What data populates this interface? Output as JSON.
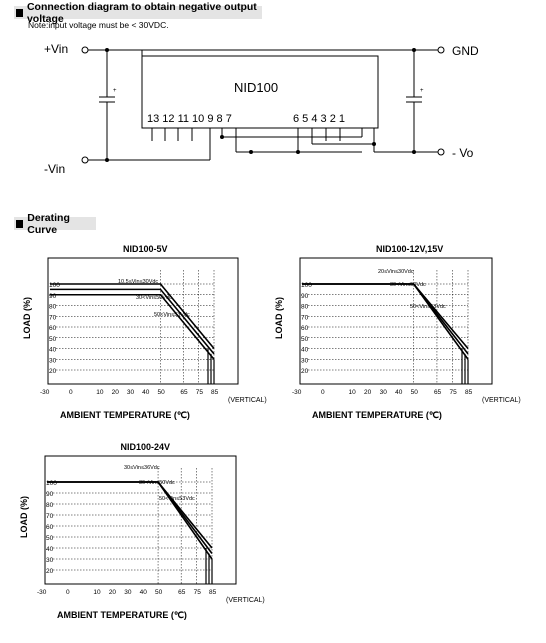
{
  "section1": {
    "title": "Connection diagram to obtain negative output voltage",
    "note": "Note:input voltage must be < 30VDC."
  },
  "circuit": {
    "vin_plus": "+Vin",
    "vin_minus": "-Vin",
    "gnd": "GND",
    "vo_minus": "- Vo",
    "module_name": "NID100",
    "pins_left": "13 12 11 10 9  8  7",
    "pins_right": "6  5  4  3  2  1",
    "cap_plus": "+"
  },
  "section2": {
    "title": "Derating Curve"
  },
  "charts": [
    {
      "title": "NID100-5V",
      "y_axis_label": "LOAD (%)",
      "x_axis_label": "AMBIENT TEMPERATURE (℃)",
      "x_unit_note": "(VERTICAL)",
      "x_ticks": [
        "-30",
        "0",
        "10",
        "20",
        "30",
        "40",
        "50",
        "65",
        "75",
        "85"
      ],
      "y_ticks": [
        "100",
        "90",
        "80",
        "70",
        "60",
        "50",
        "40",
        "30",
        "20"
      ],
      "annotations": [
        "10.5≤Vin≤30Vdc",
        "30<Vin≤50Vdc",
        "50<Vin≤53Vdc"
      ]
    },
    {
      "title": "NID100-12V,15V",
      "y_axis_label": "LOAD (%)",
      "x_axis_label": "AMBIENT TEMPERATURE (℃)",
      "x_unit_note": "(VERTICAL)",
      "x_ticks": [
        "-30",
        "0",
        "10",
        "20",
        "30",
        "40",
        "50",
        "65",
        "75",
        "85"
      ],
      "y_ticks": [
        "100",
        "90",
        "80",
        "70",
        "60",
        "50",
        "40",
        "30",
        "20"
      ],
      "annotations": [
        "20≤Vin≤30Vdc",
        "30<Vin≤50Vdc",
        "50<Vin≤53Vdc"
      ]
    },
    {
      "title": "NID100-24V",
      "y_axis_label": "LOAD (%)",
      "x_axis_label": "AMBIENT TEMPERATURE (℃)",
      "x_unit_note": "(VERTICAL)",
      "x_ticks": [
        "-30",
        "0",
        "10",
        "20",
        "30",
        "40",
        "50",
        "65",
        "75",
        "85"
      ],
      "y_ticks": [
        "100",
        "90",
        "80",
        "70",
        "60",
        "50",
        "40",
        "30",
        "20"
      ],
      "annotations": [
        "30≤Vin≤36Vdc",
        "36<Vin≤50Vdc",
        "50<Vin≤53Vdc"
      ]
    }
  ],
  "chart_data": [
    {
      "type": "line",
      "title": "NID100-5V",
      "xlabel": "AMBIENT TEMPERATURE (℃)",
      "ylabel": "LOAD (%)",
      "xlim": [
        -30,
        85
      ],
      "ylim": [
        20,
        100
      ],
      "series": [
        {
          "name": "10.5≤Vin≤30Vdc",
          "x": [
            -30,
            50,
            85
          ],
          "y": [
            100,
            100,
            40
          ]
        },
        {
          "name": "30<Vin≤50Vdc",
          "x": [
            -30,
            50,
            85
          ],
          "y": [
            95,
            95,
            35
          ]
        },
        {
          "name": "50<Vin≤53Vdc",
          "x": [
            -30,
            50,
            85
          ],
          "y": [
            90,
            90,
            30
          ]
        }
      ]
    },
    {
      "type": "line",
      "title": "NID100-12V,15V",
      "xlabel": "AMBIENT TEMPERATURE (℃)",
      "ylabel": "LOAD (%)",
      "xlim": [
        -30,
        85
      ],
      "ylim": [
        20,
        100
      ],
      "series": [
        {
          "name": "20≤Vin≤30Vdc",
          "x": [
            -30,
            50,
            85
          ],
          "y": [
            100,
            100,
            40
          ]
        },
        {
          "name": "30<Vin≤50Vdc",
          "x": [
            -30,
            50,
            85
          ],
          "y": [
            100,
            100,
            35
          ]
        },
        {
          "name": "50<Vin≤53Vdc",
          "x": [
            -30,
            50,
            85
          ],
          "y": [
            100,
            100,
            30
          ]
        }
      ]
    },
    {
      "type": "line",
      "title": "NID100-24V",
      "xlabel": "AMBIENT TEMPERATURE (℃)",
      "ylabel": "LOAD (%)",
      "xlim": [
        -30,
        85
      ],
      "ylim": [
        20,
        100
      ],
      "series": [
        {
          "name": "30≤Vin≤36Vdc",
          "x": [
            -30,
            50,
            85
          ],
          "y": [
            100,
            100,
            40
          ]
        },
        {
          "name": "36<Vin≤50Vdc",
          "x": [
            -30,
            50,
            85
          ],
          "y": [
            100,
            100,
            35
          ]
        },
        {
          "name": "50<Vin≤53Vdc",
          "x": [
            -30,
            50,
            85
          ],
          "y": [
            100,
            100,
            30
          ]
        }
      ]
    }
  ]
}
